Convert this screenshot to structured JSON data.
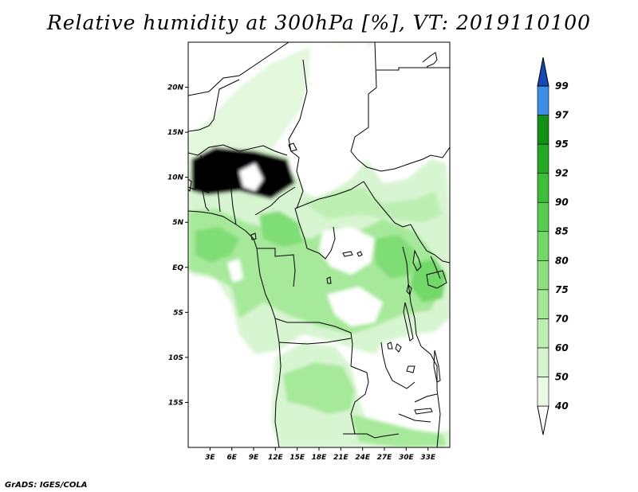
{
  "title": "Relative humidity at 300hPa [%], VT: 2019110100",
  "credit": "GrADS: IGES/COLA",
  "map": {
    "lon_range": [
      0,
      36
    ],
    "lat_range": [
      -20,
      25
    ],
    "lat_ticks": [
      {
        "lat": 20,
        "label": "20N"
      },
      {
        "lat": 15,
        "label": "15N"
      },
      {
        "lat": 10,
        "label": "10N"
      },
      {
        "lat": 5,
        "label": "5N"
      },
      {
        "lat": 0,
        "label": "EQ"
      },
      {
        "lat": -5,
        "label": "5S"
      },
      {
        "lat": -10,
        "label": "10S"
      },
      {
        "lat": -15,
        "label": "15S"
      }
    ],
    "lon_ticks": [
      {
        "lon": 3,
        "label": "3E"
      },
      {
        "lon": 6,
        "label": "6E"
      },
      {
        "lon": 9,
        "label": "9E"
      },
      {
        "lon": 12,
        "label": "12E"
      },
      {
        "lon": 15,
        "label": "15E"
      },
      {
        "lon": 18,
        "label": "18E"
      },
      {
        "lon": 21,
        "label": "21E"
      },
      {
        "lon": 24,
        "label": "24E"
      },
      {
        "lon": 27,
        "label": "27E"
      },
      {
        "lon": 30,
        "label": "30E"
      },
      {
        "lon": 33,
        "label": "33E"
      }
    ]
  },
  "legend": {
    "levels": [
      {
        "label": "40",
        "color": "#eaf9e6"
      },
      {
        "label": "50",
        "color": "#d6f5cf"
      },
      {
        "label": "60",
        "color": "#bdefb3"
      },
      {
        "label": "70",
        "color": "#a3e897"
      },
      {
        "label": "75",
        "color": "#8ee07e"
      },
      {
        "label": "80",
        "color": "#72d867"
      },
      {
        "label": "85",
        "color": "#57cc4f"
      },
      {
        "label": "90",
        "color": "#3dbd38"
      },
      {
        "label": "92",
        "color": "#22a822"
      },
      {
        "label": "95",
        "color": "#128f14"
      },
      {
        "label": "97",
        "color": "#3c8de6"
      },
      {
        "label": "99",
        "color": "#1f63cf"
      }
    ],
    "top_arrow_color": "#1848b8"
  }
}
